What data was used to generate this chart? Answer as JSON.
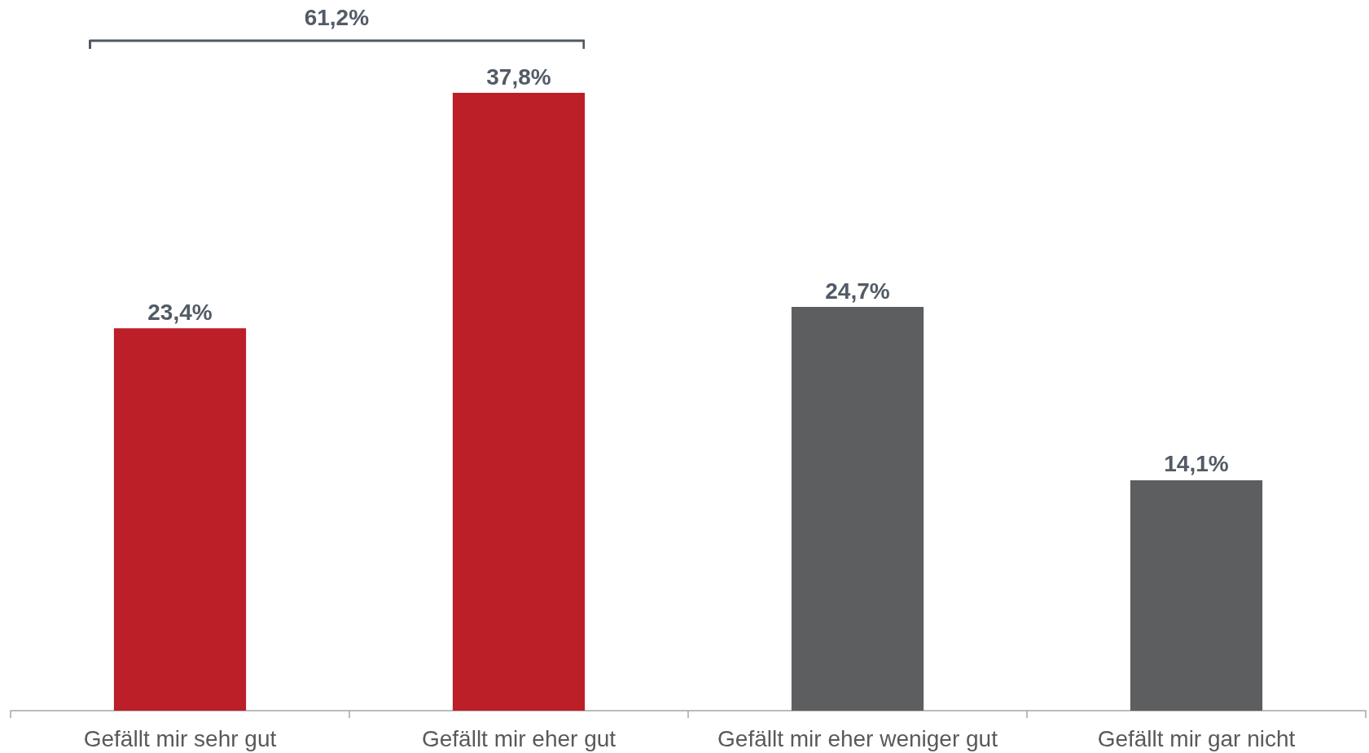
{
  "chart_data": {
    "type": "bar",
    "categories": [
      "Gefällt mir sehr gut",
      "Gefällt mir eher gut",
      "Gefällt mir eher weniger gut",
      "Gefällt mir gar nicht"
    ],
    "values": [
      23.4,
      37.8,
      24.7,
      14.1
    ],
    "colors": [
      "#bc1f28",
      "#bc1f28",
      "#5d5e60",
      "#5d5e60"
    ],
    "value_labels": [
      "23,4%",
      "37,8%",
      "24,7%",
      "14,1%"
    ],
    "annotations": [
      "61,2%"
    ]
  }
}
